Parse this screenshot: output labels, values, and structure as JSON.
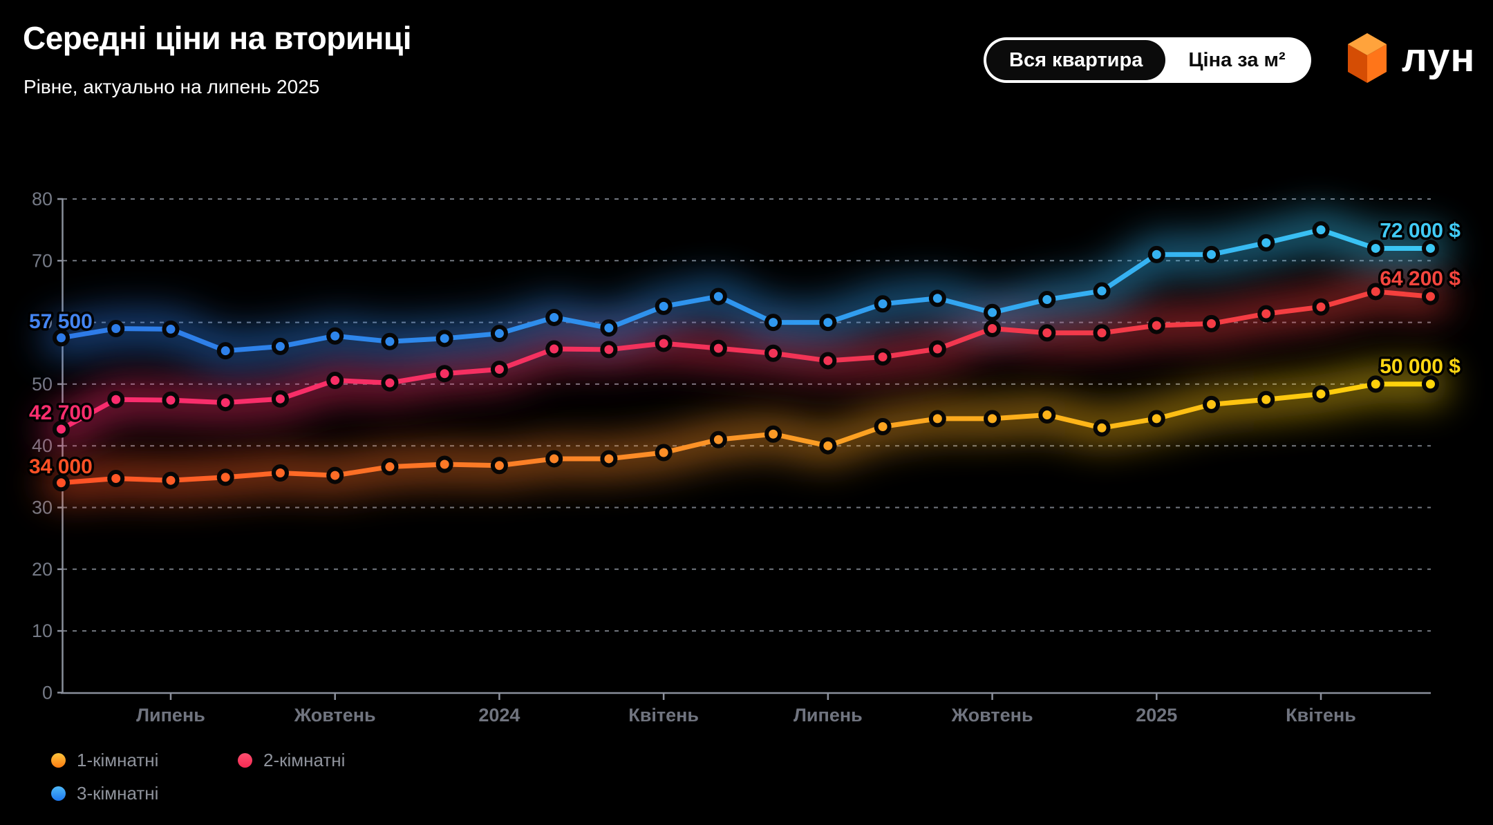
{
  "header": {
    "title": "Середні ціни на вторинці",
    "subtitle": "Рівне, актуально на липень 2025"
  },
  "toggle": {
    "options": [
      {
        "label": "Вся квартира",
        "active": true
      },
      {
        "label": "Ціна за м²",
        "active": false
      }
    ]
  },
  "logo": {
    "text": "лун",
    "cube_colors": {
      "top": "#FFA33C",
      "left": "#D54D04",
      "right": "#FF7519"
    }
  },
  "legend": {
    "items": [
      {
        "label": "1-кімнатні",
        "colors": [
          "#FFC53D",
          "#FC7B11"
        ]
      },
      {
        "label": "2-кімнатні",
        "colors": [
          "#FF4F70",
          "#F52A52"
        ]
      },
      {
        "label": "3-кімнатні",
        "colors": [
          "#4FB9F8",
          "#1D78F0"
        ]
      }
    ]
  },
  "chart_data": {
    "type": "line",
    "grid": "horizontal-dashed",
    "ylim": [
      0,
      80
    ],
    "y_ticks": [
      0,
      10,
      20,
      30,
      40,
      50,
      60,
      70,
      80
    ],
    "x_tick_labels": [
      {
        "label": "Липень",
        "month_index": 2
      },
      {
        "label": "Жовтень",
        "month_index": 5
      },
      {
        "label": "2024",
        "month_index": 8
      },
      {
        "label": "Квітень",
        "month_index": 11
      },
      {
        "label": "Липень",
        "month_index": 14
      },
      {
        "label": "Жовтень",
        "month_index": 17
      },
      {
        "label": "2025",
        "month_index": 20
      },
      {
        "label": "Квітень",
        "month_index": 23
      }
    ],
    "series": [
      {
        "name": "1-кімнатні",
        "gradient": [
          "#FF5126",
          "#FB9727",
          "#FFD60A"
        ],
        "value_label_start": "34 000",
        "value_label_end": "50 000 $",
        "label_color_start": "#FF5126",
        "label_color_end": "#FFD712",
        "values": [
          34000,
          34700,
          34400,
          34900,
          35600,
          35200,
          36600,
          37000,
          36800,
          37900,
          37900,
          38900,
          41000,
          41900,
          40000,
          43100,
          44400,
          44400,
          45000,
          42900,
          44400,
          46700,
          47500,
          48400,
          50000,
          50000
        ]
      },
      {
        "name": "2-кімнатні",
        "gradient": [
          "#FB2C70",
          "#F23358",
          "#F4413C"
        ],
        "value_label_start": "42 700",
        "value_label_end": "64 200 $",
        "label_color_start": "#FB2E6E",
        "label_color_end": "#F5463E",
        "values": [
          42700,
          47500,
          47400,
          47000,
          47600,
          50600,
          50200,
          51700,
          52400,
          55700,
          55600,
          56600,
          55800,
          55000,
          53800,
          54400,
          55700,
          59000,
          58300,
          58300,
          59500,
          59800,
          61400,
          62500,
          65000,
          64200
        ]
      },
      {
        "name": "3-кімнатні",
        "gradient": [
          "#2E7AE8",
          "#2F96EF",
          "#3BC8F4"
        ],
        "value_label_start": "57 500",
        "value_label_end": "72 000 $",
        "label_color_start": "#4485F2",
        "label_color_end": "#41CBF5",
        "values": [
          57500,
          59000,
          58900,
          55400,
          56100,
          57800,
          56900,
          57400,
          58200,
          60800,
          59100,
          62600,
          64200,
          60000,
          60000,
          63000,
          63900,
          61600,
          63700,
          65100,
          71000,
          71000,
          72900,
          75000,
          72000,
          72000
        ]
      }
    ]
  }
}
